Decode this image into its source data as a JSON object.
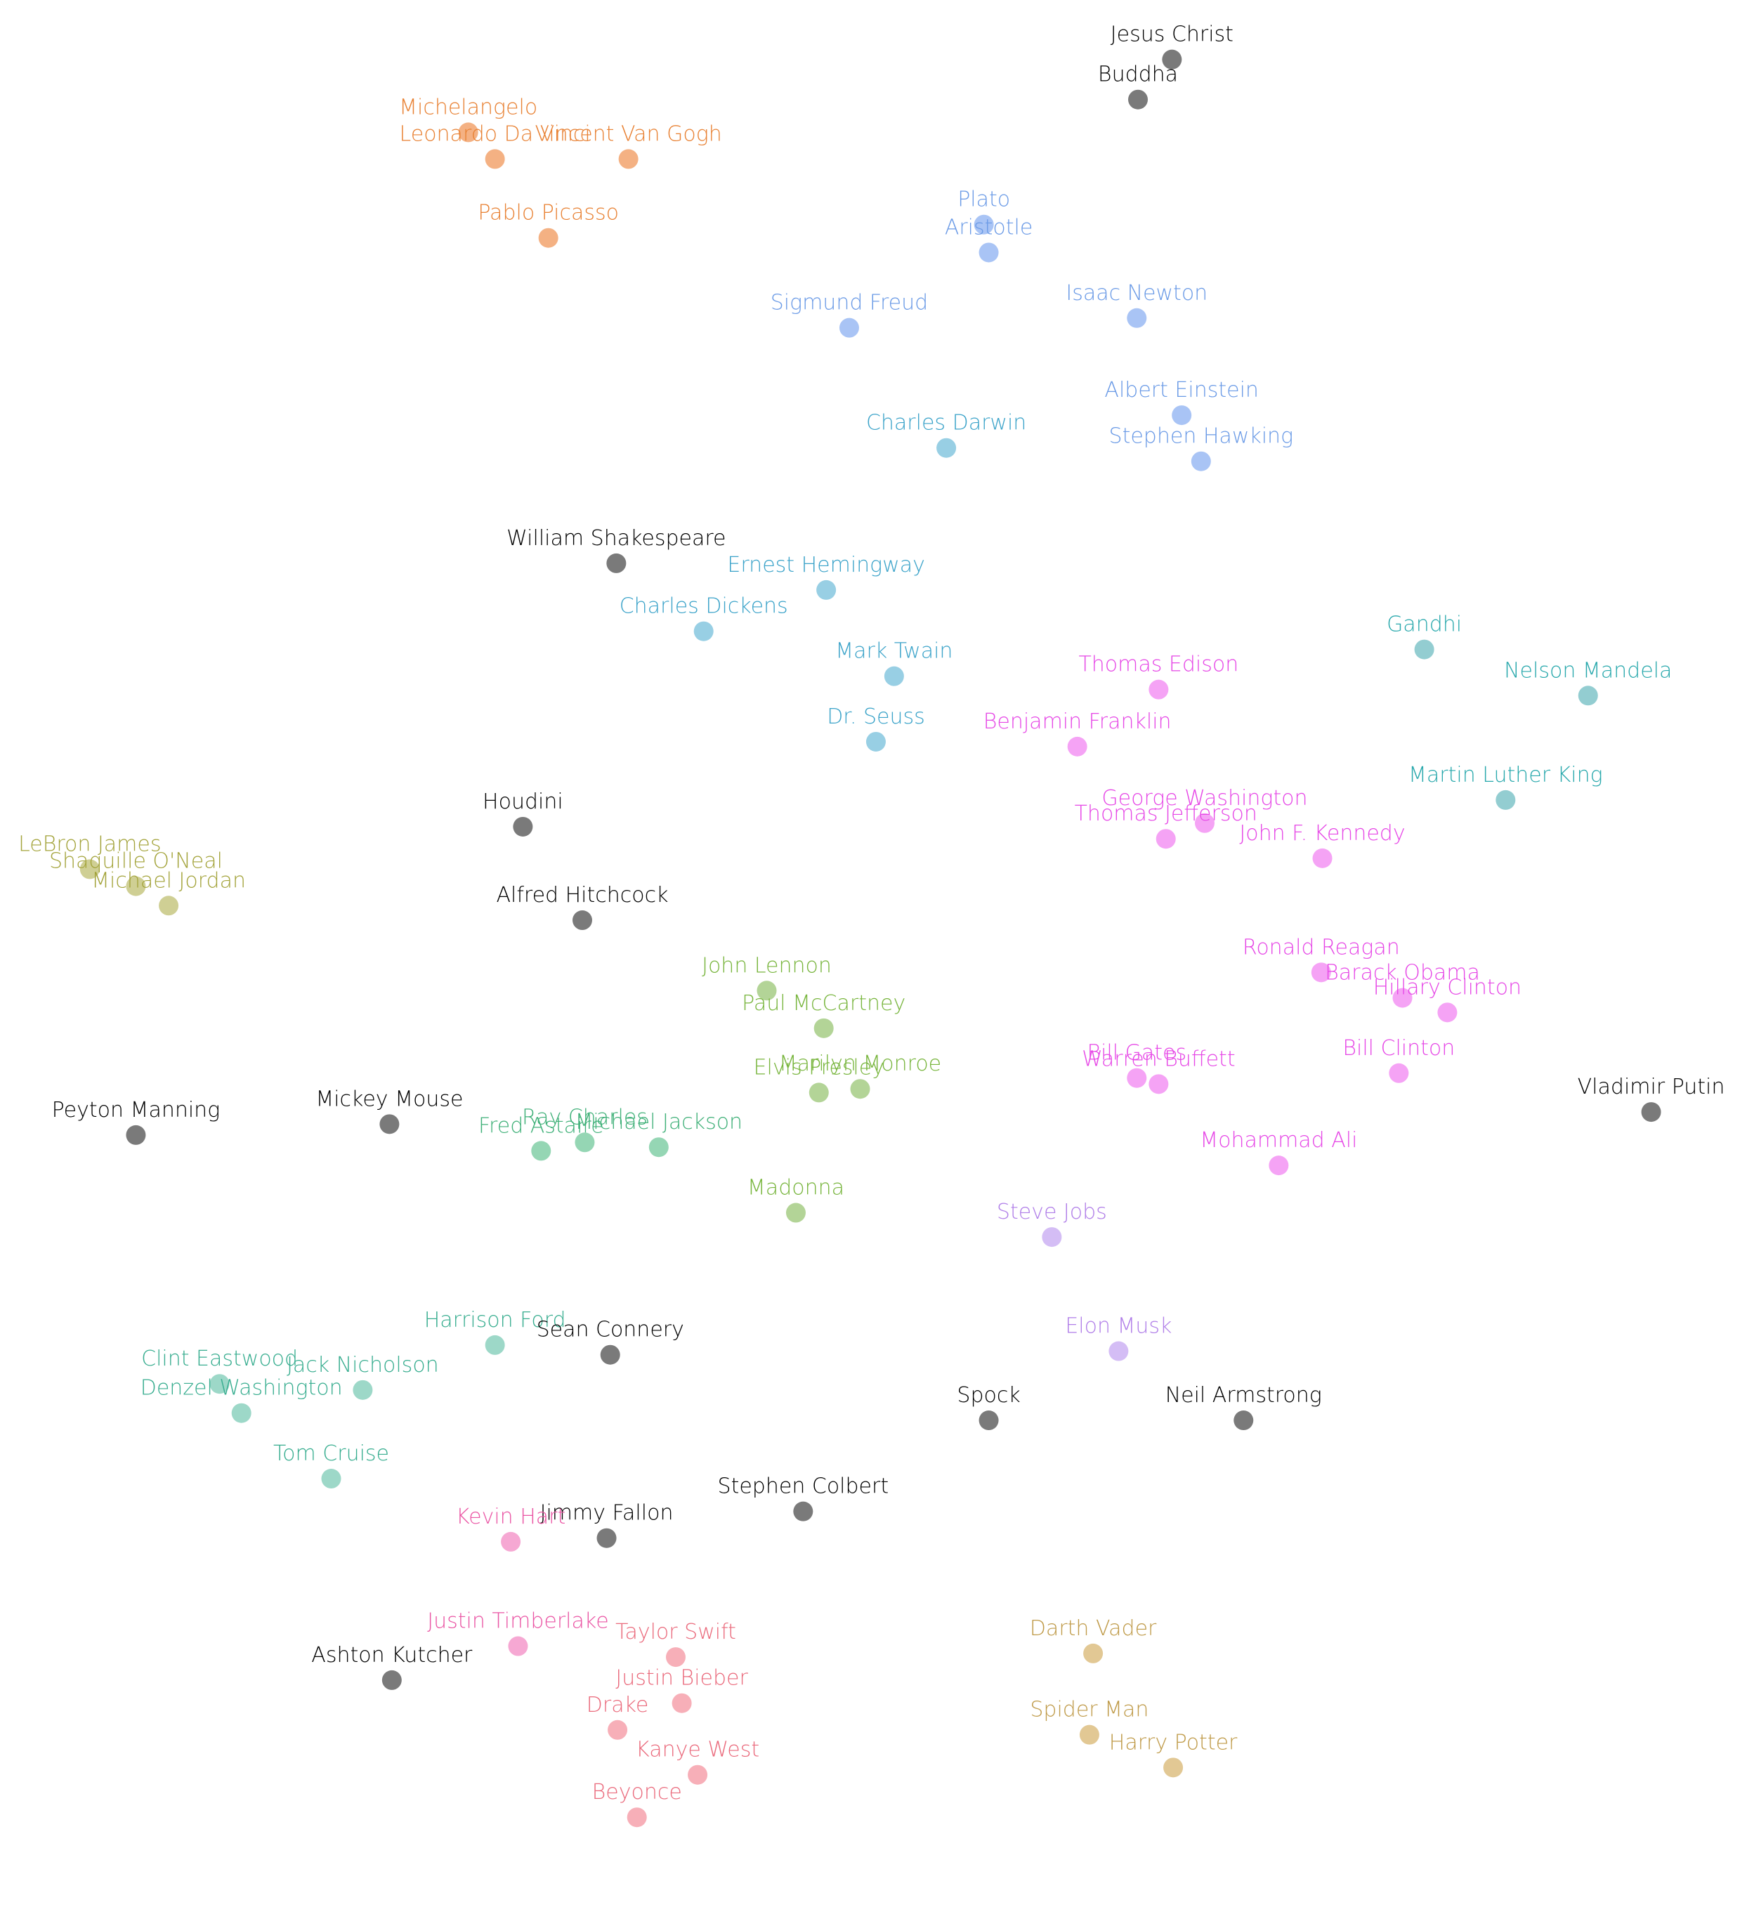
{
  "chart_data": {
    "type": "scatter",
    "title": "",
    "xlabel": "",
    "ylabel": "",
    "xlim": [
      0,
      1440
    ],
    "ylim": [
      0,
      1575
    ],
    "y_inverted": true,
    "grid": false,
    "axes_visible": false,
    "legend": "none",
    "colors": {
      "gray": "#7a7a7a",
      "orange": "#f4b183",
      "blue": "#a9c4f5",
      "sky": "#98cfe4",
      "magenta": "#f5a3f5",
      "teal": "#93cdd1",
      "olive": "#cfcf94",
      "green": "#b3d497",
      "seagreen": "#95d6b4",
      "mint": "#9dd8c8",
      "lavender": "#d4bdf5",
      "pink": "#f6a8d3",
      "rose": "#f7afb8",
      "tan": "#e2c894"
    },
    "label_colors": {
      "gray": "#000000",
      "orange": "#e88133",
      "blue": "#6a9ae6",
      "sky": "#3ba3c9",
      "magenta": "#e647e6",
      "teal": "#28a8ac",
      "olive": "#a3a33a",
      "green": "#78b53d",
      "seagreen": "#3fb078",
      "mint": "#37ad8f",
      "lavender": "#b07ee8",
      "pink": "#ea55a4",
      "rose": "#ea6a7c",
      "tan": "#bf9a48"
    },
    "points": [
      {
        "label": "Jesus Christ",
        "x": 966,
        "y": 49,
        "group": "gray"
      },
      {
        "label": "Buddha",
        "x": 938,
        "y": 82,
        "group": "gray"
      },
      {
        "label": "Michelangelo",
        "x": 386,
        "y": 109,
        "group": "orange"
      },
      {
        "label": "Leonardo Da Vinci",
        "x": 408,
        "y": 131,
        "group": "orange"
      },
      {
        "label": "Vincent Van Gogh",
        "x": 518,
        "y": 131,
        "group": "orange"
      },
      {
        "label": "Pablo Picasso",
        "x": 452,
        "y": 196,
        "group": "orange"
      },
      {
        "label": "Plato",
        "x": 811,
        "y": 185,
        "group": "blue"
      },
      {
        "label": "Aristotle",
        "x": 815,
        "y": 208,
        "group": "blue"
      },
      {
        "label": "Sigmund Freud",
        "x": 700,
        "y": 270,
        "group": "blue"
      },
      {
        "label": "Isaac Newton",
        "x": 937,
        "y": 262,
        "group": "blue"
      },
      {
        "label": "Albert Einstein",
        "x": 974,
        "y": 342,
        "group": "blue"
      },
      {
        "label": "Stephen Hawking",
        "x": 990,
        "y": 380,
        "group": "blue"
      },
      {
        "label": "Charles Darwin",
        "x": 780,
        "y": 369,
        "group": "sky"
      },
      {
        "label": "William Shakespeare",
        "x": 508,
        "y": 464,
        "group": "gray"
      },
      {
        "label": "Ernest Hemingway",
        "x": 681,
        "y": 486,
        "group": "sky"
      },
      {
        "label": "Charles Dickens",
        "x": 580,
        "y": 520,
        "group": "sky"
      },
      {
        "label": "Mark Twain",
        "x": 737,
        "y": 557,
        "group": "sky"
      },
      {
        "label": "Dr. Seuss",
        "x": 722,
        "y": 611,
        "group": "sky"
      },
      {
        "label": "Gandhi",
        "x": 1174,
        "y": 535,
        "group": "teal"
      },
      {
        "label": "Nelson Mandela",
        "x": 1309,
        "y": 573,
        "group": "teal"
      },
      {
        "label": "Martin Luther King",
        "x": 1241,
        "y": 659,
        "group": "teal"
      },
      {
        "label": "Thomas Edison",
        "x": 955,
        "y": 568,
        "group": "magenta"
      },
      {
        "label": "Benjamin Franklin",
        "x": 888,
        "y": 615,
        "group": "magenta"
      },
      {
        "label": "George Washington",
        "x": 993,
        "y": 678,
        "group": "magenta"
      },
      {
        "label": "Thomas Jefferson",
        "x": 961,
        "y": 691,
        "group": "magenta"
      },
      {
        "label": "John F. Kennedy",
        "x": 1090,
        "y": 707,
        "group": "magenta"
      },
      {
        "label": "Houdini",
        "x": 431,
        "y": 681,
        "group": "gray"
      },
      {
        "label": "LeBron James",
        "x": 74,
        "y": 716,
        "group": "olive"
      },
      {
        "label": "Shaquille O'Neal",
        "x": 112,
        "y": 730,
        "group": "olive"
      },
      {
        "label": "Michael Jordan",
        "x": 139,
        "y": 746,
        "group": "olive"
      },
      {
        "label": "Alfred Hitchcock",
        "x": 480,
        "y": 758,
        "group": "gray"
      },
      {
        "label": "John Lennon",
        "x": 632,
        "y": 816,
        "group": "green"
      },
      {
        "label": "Paul McCartney",
        "x": 679,
        "y": 847,
        "group": "green"
      },
      {
        "label": "Marilyn Monroe",
        "x": 709,
        "y": 897,
        "group": "green"
      },
      {
        "label": "Elvis Presley",
        "x": 675,
        "y": 900,
        "group": "green"
      },
      {
        "label": "Madonna",
        "x": 656,
        "y": 999,
        "group": "green"
      },
      {
        "label": "Ronald Reagan",
        "x": 1089,
        "y": 801,
        "group": "magenta"
      },
      {
        "label": "Barack Obama",
        "x": 1156,
        "y": 822,
        "group": "magenta"
      },
      {
        "label": "Hillary Clinton",
        "x": 1193,
        "y": 834,
        "group": "magenta"
      },
      {
        "label": "Bill Clinton",
        "x": 1153,
        "y": 884,
        "group": "magenta"
      },
      {
        "label": "Bill Gates",
        "x": 937,
        "y": 888,
        "group": "magenta"
      },
      {
        "label": "Warren Buffett",
        "x": 955,
        "y": 893,
        "group": "magenta"
      },
      {
        "label": "Mohammad Ali",
        "x": 1054,
        "y": 960,
        "group": "magenta"
      },
      {
        "label": "Vladimir Putin",
        "x": 1361,
        "y": 916,
        "group": "gray"
      },
      {
        "label": "Peyton Manning",
        "x": 112,
        "y": 935,
        "group": "gray"
      },
      {
        "label": "Mickey Mouse",
        "x": 321,
        "y": 926,
        "group": "gray"
      },
      {
        "label": "Ray Charles",
        "x": 482,
        "y": 941,
        "group": "seagreen"
      },
      {
        "label": "Fred Astaire",
        "x": 446,
        "y": 948,
        "group": "seagreen"
      },
      {
        "label": "Michael Jackson",
        "x": 543,
        "y": 945,
        "group": "seagreen"
      },
      {
        "label": "Steve Jobs",
        "x": 867,
        "y": 1019,
        "group": "lavender"
      },
      {
        "label": "Elon Musk",
        "x": 922,
        "y": 1113,
        "group": "lavender"
      },
      {
        "label": "Harrison Ford",
        "x": 408,
        "y": 1108,
        "group": "mint"
      },
      {
        "label": "Sean Connery",
        "x": 503,
        "y": 1116,
        "group": "gray"
      },
      {
        "label": "Clint Eastwood",
        "x": 181,
        "y": 1140,
        "group": "mint"
      },
      {
        "label": "Jack Nicholson",
        "x": 299,
        "y": 1145,
        "group": "mint"
      },
      {
        "label": "Denzel Washington",
        "x": 199,
        "y": 1164,
        "group": "mint"
      },
      {
        "label": "Tom Cruise",
        "x": 273,
        "y": 1218,
        "group": "mint"
      },
      {
        "label": "Spock",
        "x": 815,
        "y": 1170,
        "group": "gray"
      },
      {
        "label": "Neil Armstrong",
        "x": 1025,
        "y": 1170,
        "group": "gray"
      },
      {
        "label": "Stephen Colbert",
        "x": 662,
        "y": 1245,
        "group": "gray"
      },
      {
        "label": "Jimmy Fallon",
        "x": 500,
        "y": 1267,
        "group": "gray"
      },
      {
        "label": "Kevin Hart",
        "x": 421,
        "y": 1270,
        "group": "pink"
      },
      {
        "label": "Justin Timberlake",
        "x": 427,
        "y": 1356,
        "group": "pink"
      },
      {
        "label": "Ashton Kutcher",
        "x": 323,
        "y": 1384,
        "group": "gray"
      },
      {
        "label": "Taylor Swift",
        "x": 557,
        "y": 1365,
        "group": "rose"
      },
      {
        "label": "Justin Bieber",
        "x": 562,
        "y": 1403,
        "group": "rose"
      },
      {
        "label": "Drake",
        "x": 509,
        "y": 1425,
        "group": "rose"
      },
      {
        "label": "Kanye West",
        "x": 575,
        "y": 1462,
        "group": "rose"
      },
      {
        "label": "Beyonce",
        "x": 525,
        "y": 1497,
        "group": "rose"
      },
      {
        "label": "Darth Vader",
        "x": 901,
        "y": 1362,
        "group": "tan"
      },
      {
        "label": "Spider Man",
        "x": 898,
        "y": 1429,
        "group": "tan"
      },
      {
        "label": "Harry Potter",
        "x": 967,
        "y": 1456,
        "group": "tan"
      }
    ]
  }
}
